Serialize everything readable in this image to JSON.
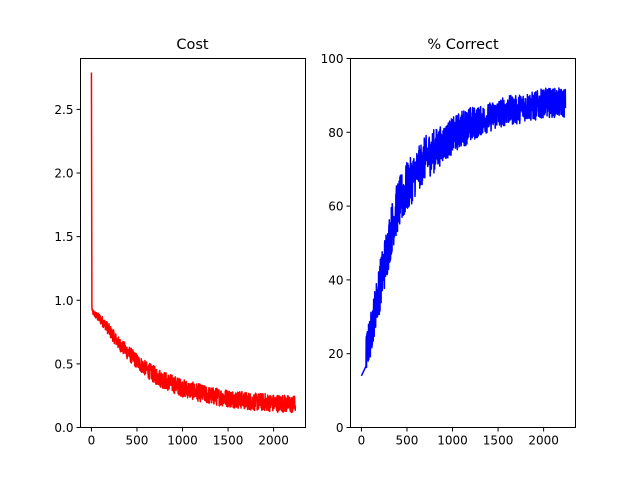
{
  "chart_data": [
    {
      "type": "line",
      "title": "Cost",
      "xlabel": "",
      "ylabel": "",
      "xlim": [
        -120,
        2350
      ],
      "ylim": [
        0.0,
        2.9
      ],
      "xticks": [
        0,
        500,
        1000,
        1500,
        2000
      ],
      "yticks": [
        0.0,
        0.5,
        1.0,
        1.5,
        2.0,
        2.5
      ],
      "ytick_format": "0.0",
      "grid": false,
      "legend": "none",
      "color": "#ff0000",
      "series": [
        {
          "x": [
            0,
            5,
            10,
            50,
            100,
            150,
            200,
            250,
            300,
            400,
            500,
            600,
            700,
            800,
            900,
            1000,
            1100,
            1200,
            1300,
            1400,
            1500,
            1600,
            1700,
            1800,
            1900,
            2000,
            2100,
            2200,
            2240
          ],
          "y": [
            2.79,
            0.95,
            0.91,
            0.88,
            0.85,
            0.81,
            0.76,
            0.71,
            0.66,
            0.59,
            0.52,
            0.46,
            0.41,
            0.37,
            0.34,
            0.31,
            0.29,
            0.27,
            0.25,
            0.24,
            0.23,
            0.22,
            0.21,
            0.2,
            0.2,
            0.19,
            0.19,
            0.18,
            0.18
          ],
          "noise": [
            0,
            0,
            0.02,
            0.03,
            0.04,
            0.04,
            0.05,
            0.05,
            0.05,
            0.06,
            0.06,
            0.06,
            0.07,
            0.07,
            0.07,
            0.07,
            0.07,
            0.07,
            0.07,
            0.07,
            0.07,
            0.07,
            0.07,
            0.07,
            0.07,
            0.07,
            0.07,
            0.07,
            0.07
          ]
        }
      ]
    },
    {
      "type": "line",
      "title": "% Correct",
      "xlabel": "",
      "ylabel": "",
      "xlim": [
        -120,
        2350
      ],
      "ylim": [
        0,
        100
      ],
      "xticks": [
        0,
        500,
        1000,
        1500,
        2000
      ],
      "yticks": [
        0,
        20,
        40,
        60,
        80,
        100
      ],
      "ytick_format": "0",
      "grid": false,
      "legend": "none",
      "color": "#0000ff",
      "series": [
        {
          "x": [
            0,
            50,
            100,
            150,
            200,
            250,
            300,
            350,
            400,
            500,
            600,
            700,
            800,
            900,
            1000,
            1100,
            1200,
            1300,
            1400,
            1500,
            1600,
            1700,
            1800,
            1900,
            2000,
            2100,
            2200,
            2240
          ],
          "y": [
            14,
            20,
            25,
            32,
            38,
            44,
            50,
            56,
            60,
            65,
            69,
            73,
            75,
            77,
            79,
            81,
            82,
            83,
            84,
            85,
            86,
            86,
            87,
            87,
            88,
            88,
            88,
            88
          ],
          "noise": [
            4,
            5,
            6,
            6,
            7,
            7,
            7,
            7,
            7,
            7,
            6,
            6,
            6,
            5,
            5,
            5,
            5,
            4,
            4,
            4,
            4,
            4,
            4,
            4,
            4,
            4,
            4,
            4
          ]
        }
      ]
    }
  ]
}
